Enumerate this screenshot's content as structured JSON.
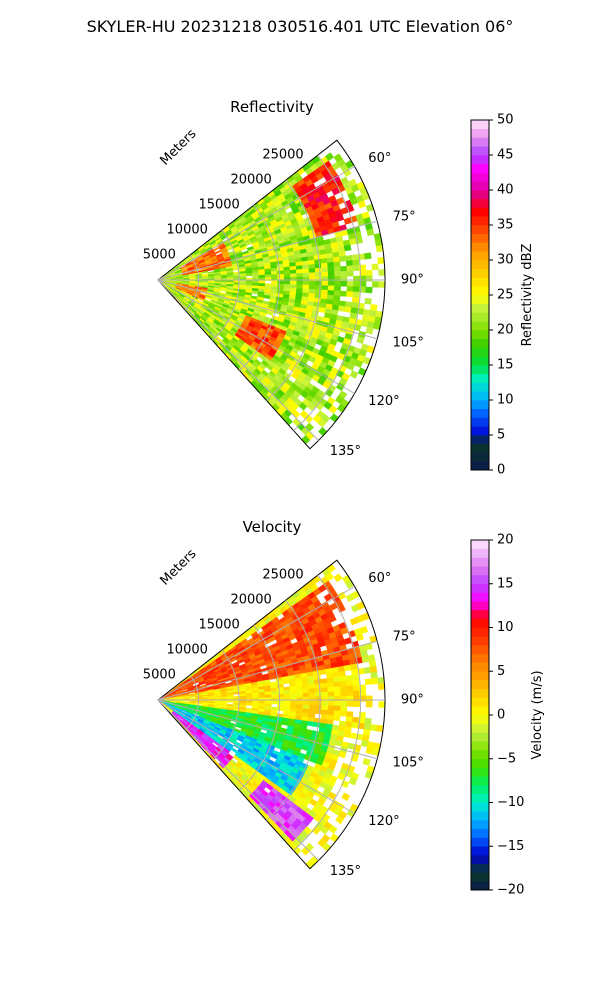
{
  "figure": {
    "suptitle": "SKYLER-HU  20231218  030516.401 UTC Elevation 06°"
  },
  "chart_data": [
    {
      "type": "heatmap",
      "projection": "polar-sector",
      "title": "Reflectivity",
      "radial_label": "Meters",
      "radial_ticks": [
        5000,
        10000,
        15000,
        20000,
        25000
      ],
      "radial_tick_labels": [
        "5000",
        "10000",
        "15000",
        "20000",
        "25000"
      ],
      "rmax": 28000,
      "azimuth_range_deg": [
        52,
        138
      ],
      "azimuth_ticks": [
        60,
        75,
        90,
        105,
        120,
        135
      ],
      "azimuth_tick_labels": [
        "60°",
        "75°",
        "90°",
        "105°",
        "120°",
        "135°"
      ],
      "grid": true,
      "colorbar": {
        "label": "Reflectivity dBZ",
        "min": 0,
        "max": 50,
        "ticks": [
          0,
          5,
          10,
          15,
          20,
          25,
          30,
          35,
          40,
          45,
          50
        ],
        "tick_labels": [
          "0",
          "5",
          "10",
          "15",
          "20",
          "25",
          "30",
          "35",
          "40",
          "45",
          "50"
        ],
        "stops": [
          [
            0,
            "#0a1a4a"
          ],
          [
            4,
            "#0a3a2a"
          ],
          [
            5,
            "#0000d0"
          ],
          [
            8,
            "#0060ff"
          ],
          [
            10,
            "#00b0ff"
          ],
          [
            13,
            "#00f0c0"
          ],
          [
            15,
            "#00e040"
          ],
          [
            18,
            "#40d000"
          ],
          [
            20,
            "#80e000"
          ],
          [
            23,
            "#c0f040"
          ],
          [
            25,
            "#ffff00"
          ],
          [
            28,
            "#ffd000"
          ],
          [
            31,
            "#ffa000"
          ],
          [
            34,
            "#ff5000"
          ],
          [
            37,
            "#ff0000"
          ],
          [
            40,
            "#e000a0"
          ],
          [
            43,
            "#ff00ff"
          ],
          [
            45,
            "#b040ff"
          ],
          [
            48,
            "#f0a0f0"
          ],
          [
            50,
            "#ffe8ff"
          ]
        ]
      },
      "field_summary": [
        {
          "az": [
            55,
            75
          ],
          "r": [
            20000,
            26000
          ],
          "dbz": 36
        },
        {
          "az": [
            60,
            80
          ],
          "r": [
            3000,
            9000
          ],
          "dbz": 33
        },
        {
          "az": [
            112,
            125
          ],
          "r": [
            12000,
            17000
          ],
          "dbz": 34
        },
        {
          "az": [
            100,
            115
          ],
          "r": [
            2000,
            6000
          ],
          "dbz": 32
        },
        {
          "az": [
            52,
            138
          ],
          "r": [
            0,
            26000
          ],
          "dbz": 22
        }
      ]
    },
    {
      "type": "heatmap",
      "projection": "polar-sector",
      "title": "Velocity",
      "radial_label": "Meters",
      "radial_ticks": [
        5000,
        10000,
        15000,
        20000,
        25000
      ],
      "radial_tick_labels": [
        "5000",
        "10000",
        "15000",
        "20000",
        "25000"
      ],
      "rmax": 28000,
      "azimuth_range_deg": [
        52,
        138
      ],
      "azimuth_ticks": [
        60,
        75,
        90,
        105,
        120,
        135
      ],
      "azimuth_tick_labels": [
        "60°",
        "75°",
        "90°",
        "105°",
        "120°",
        "135°"
      ],
      "grid": true,
      "colorbar": {
        "label": "Velocity (m/s)",
        "min": -20,
        "max": 20,
        "ticks": [
          -20,
          -15,
          -10,
          -5,
          0,
          5,
          10,
          15,
          20
        ],
        "tick_labels": [
          "−20",
          "−15",
          "−10",
          "−5",
          "0",
          "5",
          "10",
          "15",
          "20"
        ],
        "stops": [
          [
            -20,
            "#0a1a4a"
          ],
          [
            -18,
            "#0a3a2a"
          ],
          [
            -16,
            "#0000d0"
          ],
          [
            -14,
            "#0060ff"
          ],
          [
            -12,
            "#00b0ff"
          ],
          [
            -10,
            "#00f0d0"
          ],
          [
            -8,
            "#00f060"
          ],
          [
            -6,
            "#40e000"
          ],
          [
            -4,
            "#80e000"
          ],
          [
            -2,
            "#c0f040"
          ],
          [
            0,
            "#ffff00"
          ],
          [
            3,
            "#ffc000"
          ],
          [
            6,
            "#ff8000"
          ],
          [
            9,
            "#ff3000"
          ],
          [
            11,
            "#ff0000"
          ],
          [
            13,
            "#ff00ff"
          ],
          [
            15,
            "#c040ff"
          ],
          [
            17,
            "#e080f0"
          ],
          [
            20,
            "#ffe8ff"
          ]
        ]
      },
      "field_summary": [
        {
          "az": [
            55,
            80
          ],
          "r": [
            0,
            26000
          ],
          "vel": 8
        },
        {
          "az": [
            80,
            98
          ],
          "r": [
            0,
            26000
          ],
          "vel": 1
        },
        {
          "az": [
            98,
            112
          ],
          "r": [
            0,
            22000
          ],
          "vel": -7
        },
        {
          "az": [
            112,
            125
          ],
          "r": [
            0,
            20000
          ],
          "vel": -11
        },
        {
          "az": [
            125,
            136
          ],
          "r": [
            2000,
            12000
          ],
          "vel": 14
        },
        {
          "az": [
            128,
            136
          ],
          "r": [
            16000,
            24000
          ],
          "vel": 15
        }
      ]
    }
  ]
}
